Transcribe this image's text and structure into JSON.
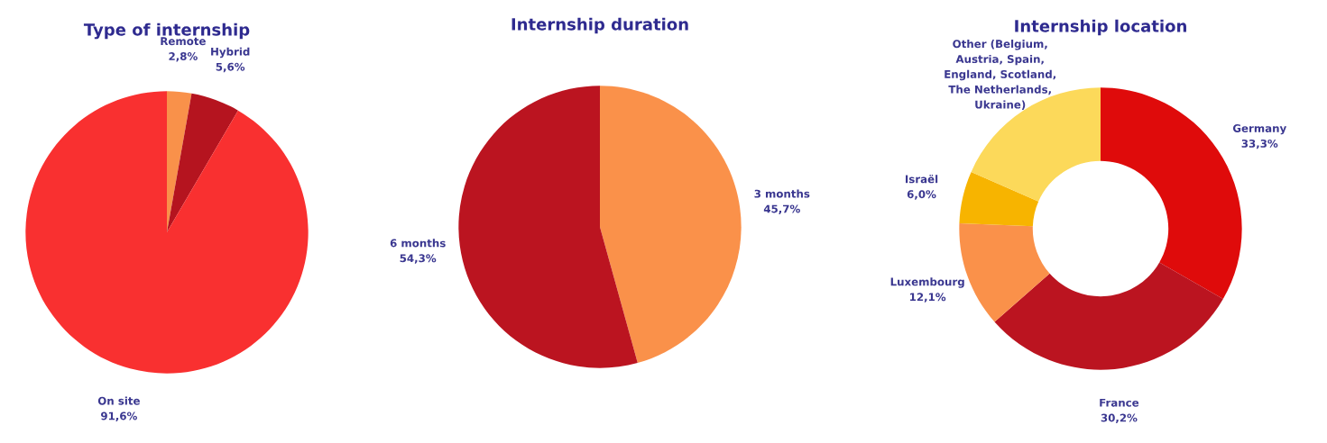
{
  "chart_data": [
    {
      "type": "pie",
      "title": "Type of internship",
      "categories": [
        "Remote",
        "Hybrid",
        "On site"
      ],
      "values": [
        2.8,
        5.6,
        91.6
      ],
      "value_labels": [
        "2,8%",
        "5,6%",
        "91,6%"
      ],
      "colors": [
        "#f9914a",
        "#b5141f",
        "#f93030"
      ]
    },
    {
      "type": "pie",
      "title": "Internship duration",
      "categories": [
        "3 months",
        "6 months"
      ],
      "values": [
        45.7,
        54.3
      ],
      "value_labels": [
        "45,7%",
        "54,3%"
      ],
      "colors": [
        "#fa914a",
        "#bb1420"
      ]
    },
    {
      "type": "donut",
      "title": "Internship location",
      "categories": [
        "Germany",
        "France",
        "Luxembourg",
        "Israël",
        "Other (Belgium, Austria, Spain, England, Scotland, The Netherlands, Ukraine)"
      ],
      "values": [
        33.3,
        30.2,
        12.1,
        6.0,
        18.4
      ],
      "value_labels": [
        "33,3%",
        "30,2%",
        "12,1%",
        "6,0%",
        null
      ],
      "colors": [
        "#df0b0b",
        "#bb1420",
        "#fa914a",
        "#f7b400",
        "#fcd95a"
      ]
    }
  ]
}
